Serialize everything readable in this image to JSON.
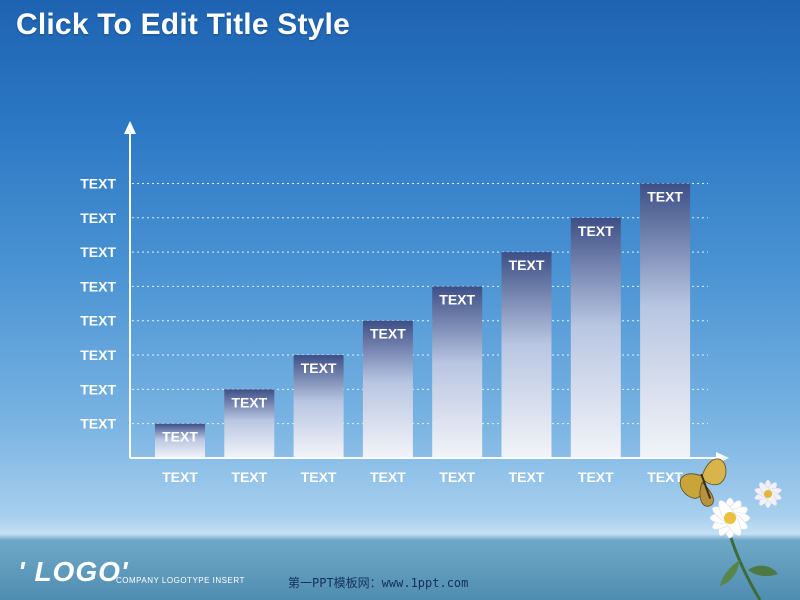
{
  "title": "Click To Edit Title Style",
  "footer": {
    "logo": "' LOGO'",
    "tagline": "COMPANY LOGOTYPE INSERT",
    "url": "第一PPT模板网：www.1ppt.com"
  },
  "chart_data": {
    "type": "bar",
    "categories": [
      "TEXT",
      "TEXT",
      "TEXT",
      "TEXT",
      "TEXT",
      "TEXT",
      "TEXT",
      "TEXT"
    ],
    "values": [
      1,
      2,
      3,
      4,
      5,
      6,
      7,
      8
    ],
    "data_labels": [
      "TEXT",
      "TEXT",
      "TEXT",
      "TEXT",
      "TEXT",
      "TEXT",
      "TEXT",
      "TEXT"
    ],
    "y_tick_labels": [
      "TEXT",
      "TEXT",
      "TEXT",
      "TEXT",
      "TEXT",
      "TEXT",
      "TEXT",
      "TEXT"
    ],
    "ylim": [
      0,
      9.5
    ],
    "grid": true,
    "bar_top_color": "#3d4f86",
    "bar_bottom_color": "#f2f4f8",
    "axis_color": "#ffffff"
  }
}
